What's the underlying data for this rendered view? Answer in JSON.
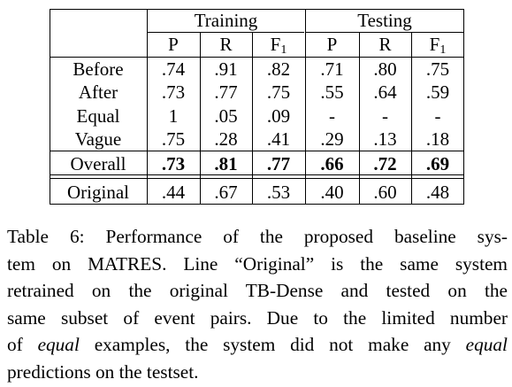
{
  "table": {
    "group_headers": [
      "Training",
      "Testing"
    ],
    "metric_headers": [
      "P",
      "R",
      "F",
      "P",
      "R",
      "F"
    ],
    "f_subscript": "1",
    "rows": [
      {
        "label": "Before",
        "values": [
          ".74",
          ".91",
          ".82",
          ".71",
          ".80",
          ".75"
        ],
        "bold": false
      },
      {
        "label": "After",
        "values": [
          ".73",
          ".77",
          ".75",
          ".55",
          ".64",
          ".59"
        ],
        "bold": false
      },
      {
        "label": "Equal",
        "values": [
          "1",
          ".05",
          ".09",
          "-",
          "-",
          "-"
        ],
        "bold": false
      },
      {
        "label": "Vague",
        "values": [
          ".75",
          ".28",
          ".41",
          ".29",
          ".13",
          ".18"
        ],
        "bold": false
      },
      {
        "label": "Overall",
        "values": [
          ".73",
          ".81",
          ".77",
          ".66",
          ".72",
          ".69"
        ],
        "bold": true
      },
      {
        "label": "Original",
        "values": [
          ".44",
          ".67",
          ".53",
          ".40",
          ".60",
          ".48"
        ],
        "bold": false
      }
    ]
  },
  "caption": {
    "lines": [
      {
        "parts": [
          {
            "text": "Table 6:  Performance of the proposed baseline sys-",
            "italic": false
          }
        ]
      },
      {
        "parts": [
          {
            "text": "tem on MATRES. Line “Original” is the same system",
            "italic": false
          }
        ]
      },
      {
        "parts": [
          {
            "text": "retrained on the original TB-Dense and tested on the",
            "italic": false
          }
        ]
      },
      {
        "parts": [
          {
            "text": "same subset of event pairs. Due to the limited number",
            "italic": false
          }
        ]
      },
      {
        "parts": [
          {
            "text": "of ",
            "italic": false
          },
          {
            "text": "equal",
            "italic": true
          },
          {
            "text": " examples, the system did not make any ",
            "italic": false
          },
          {
            "text": "equal",
            "italic": true
          }
        ]
      },
      {
        "parts": [
          {
            "text": "predictions on the testset.",
            "italic": false
          }
        ]
      }
    ]
  }
}
